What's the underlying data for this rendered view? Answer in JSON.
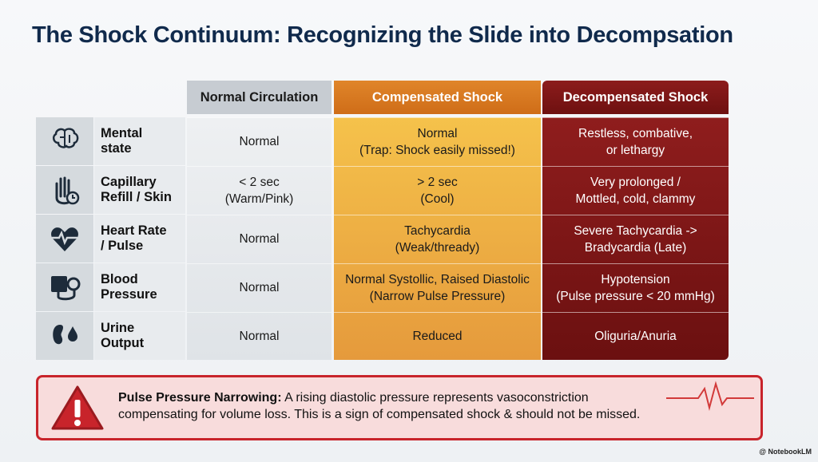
{
  "title": "The Shock Continuum: Recognizing the Slide into Decompsation",
  "table": {
    "headers": [
      "Normal Circulation",
      "Compensated Shock",
      "Decompensated Shock"
    ],
    "rows": [
      {
        "label": [
          "Mental",
          "state"
        ],
        "cells": [
          [
            "Normal"
          ],
          [
            "Normal",
            "(Trap: Shock easily missed!)"
          ],
          [
            "Restless, combative,",
            "or lethargy"
          ]
        ]
      },
      {
        "label": [
          "Capillary",
          "Refill / Skin"
        ],
        "cells": [
          [
            "< 2 sec",
            "(Warm/Pink)"
          ],
          [
            "> 2 sec",
            "(Cool)"
          ],
          [
            "Very prolonged /",
            "Mottled, cold, clammy"
          ]
        ]
      },
      {
        "label": [
          "Heart Rate",
          "/ Pulse"
        ],
        "cells": [
          [
            "Normal"
          ],
          [
            "Tachycardia",
            "(Weak/thready)"
          ],
          [
            "Severe Tachycardia ->",
            "Bradycardia (Late)"
          ]
        ]
      },
      {
        "label": [
          "Blood",
          "Pressure"
        ],
        "cells": [
          [
            "Normal"
          ],
          [
            "Normal Systollic, Raised Diastolic",
            "(Narrow Pulse Pressure)"
          ],
          [
            "Hypotension",
            "(Pulse pressure < 20 mmHg)"
          ]
        ]
      },
      {
        "label": [
          "Urine",
          "Output"
        ],
        "cells": [
          [
            "Normal"
          ],
          [
            "Reduced"
          ],
          [
            "Oliguria/Anuria"
          ]
        ]
      }
    ]
  },
  "callout": {
    "heading": "Pulse Pressure Narrowing:",
    "lines": [
      "A rising diastolic pressure represents vasoconstriction",
      "compensating for volume loss. This is a sign of compensated shock & should not be missed."
    ]
  },
  "watermark": "@ NotebookLM"
}
